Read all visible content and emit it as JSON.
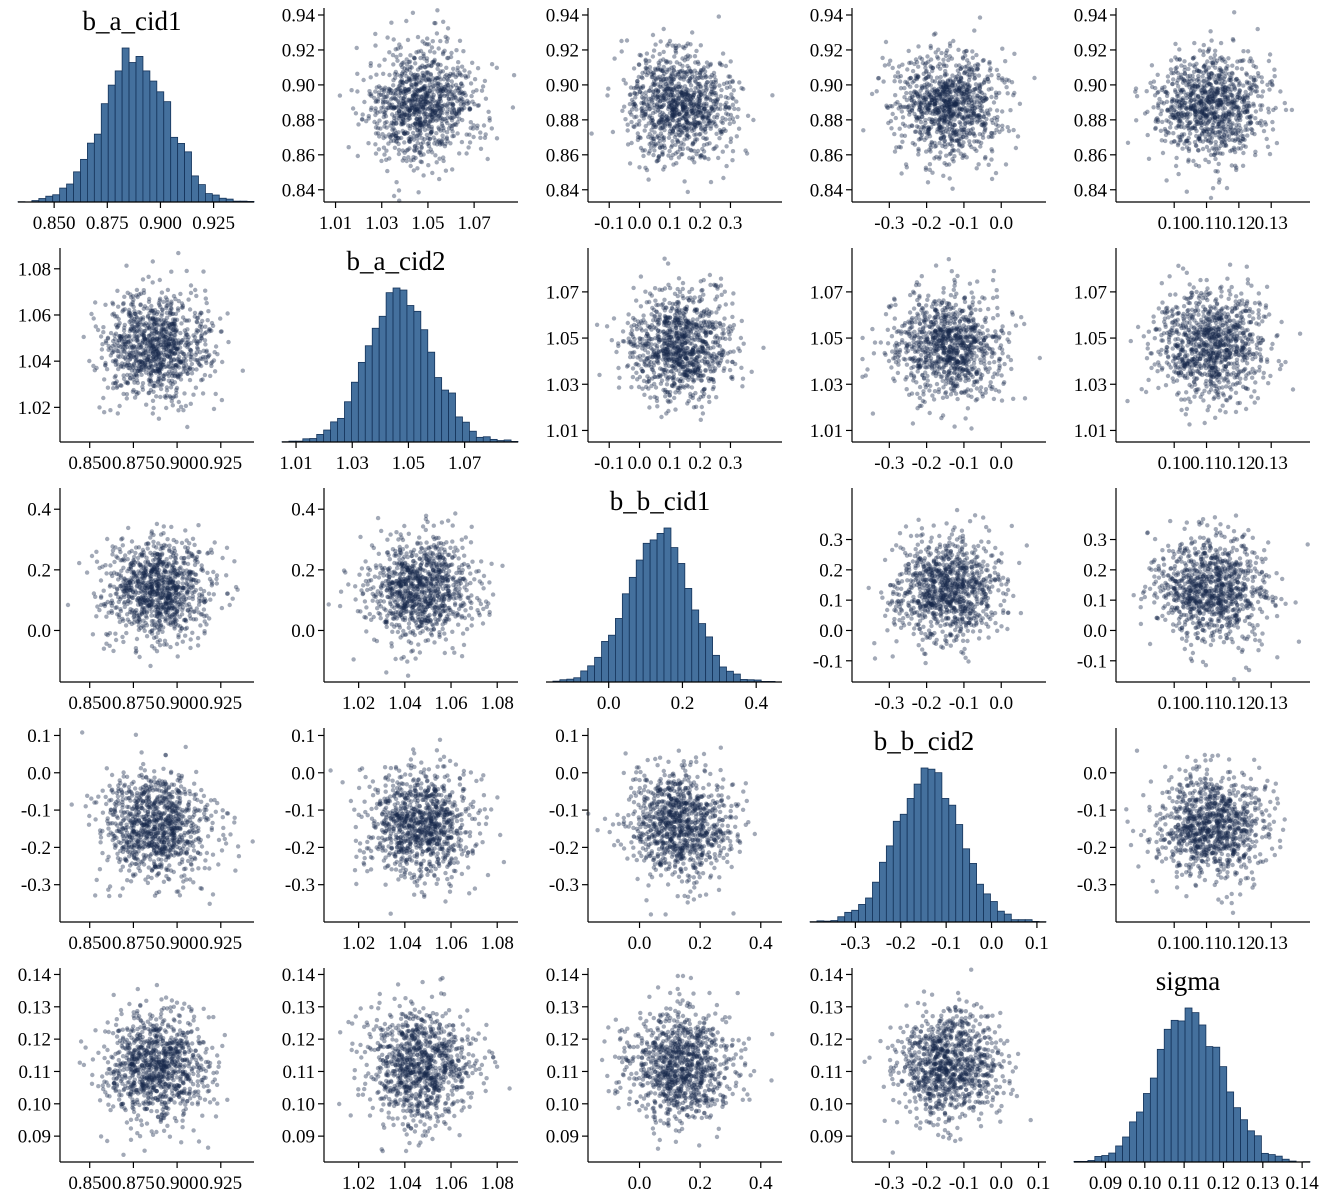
{
  "chart_data": {
    "type": "scatter",
    "subtype": "pairs-matrix",
    "description": "5x5 pairs plot of MCMC posterior samples: histograms of each parameter on the diagonal, pairwise scatter plots of draws off the diagonal. All pairs appear uncorrelated (round point clouds).",
    "grid": [
      5,
      5
    ],
    "diagonal_panel": "histogram",
    "off_diagonal_panel": "scatter",
    "legend": "none",
    "gridlines": false,
    "point_color": "#16294c",
    "point_opacity": 0.4,
    "hist_fill": "#44709d",
    "hist_stroke": "#14335a",
    "axis_color": "#000000",
    "n_points_per_panel": 1000,
    "n_hist_samples": 6000,
    "variables": [
      {
        "name": "b_a_cid1",
        "label": "b_a_cid1",
        "mean": 0.888,
        "sd": 0.0155,
        "range": [
          0.833,
          0.944
        ],
        "ticks_diag": [
          "0.850",
          "0.875",
          "0.900",
          "0.925"
        ],
        "ticks_lower": [
          "0.850",
          "0.875",
          "0.900",
          "0.925"
        ],
        "ticks_upper": [
          "0.84",
          "0.86",
          "0.88",
          "0.90",
          "0.92",
          "0.94"
        ]
      },
      {
        "name": "b_a_cid2",
        "label": "b_a_cid2",
        "mean": 1.047,
        "sd": 0.0115,
        "range": [
          1.005,
          1.089
        ],
        "ticks_diag": [
          "1.01",
          "1.03",
          "1.05",
          "1.07"
        ],
        "ticks_lower": [
          "1.02",
          "1.04",
          "1.06",
          "1.08"
        ],
        "ticks_upper": [
          "1.01",
          "1.03",
          "1.05",
          "1.07"
        ]
      },
      {
        "name": "b_b_cid1",
        "label": "b_b_cid1",
        "mean": 0.135,
        "sd": 0.085,
        "range": [
          -0.17,
          0.47
        ],
        "ticks_diag": [
          "0.0",
          "0.2",
          "0.4"
        ],
        "ticks_lower": [
          "0.0",
          "0.2",
          "0.4"
        ],
        "ticks_upper": [
          "-0.1",
          "0.0",
          "0.1",
          "0.2",
          "0.3"
        ]
      },
      {
        "name": "b_b_cid2",
        "label": "b_b_cid2",
        "mean": -0.14,
        "sd": 0.072,
        "range": [
          -0.4,
          0.12
        ],
        "ticks_diag": [
          "-0.3",
          "-0.2",
          "-0.1",
          "0.0",
          "0.1"
        ],
        "ticks_lower": [
          "-0.3",
          "-0.2",
          "-0.1",
          "0.0",
          "0.1"
        ],
        "ticks_upper": [
          "-0.3",
          "-0.2",
          "-0.1",
          "0.0"
        ]
      },
      {
        "name": "sigma",
        "label": "sigma",
        "mean": 0.1115,
        "sd": 0.0085,
        "range": [
          0.082,
          0.142
        ],
        "ticks_diag": [
          "0.09",
          "0.10",
          "0.11",
          "0.12",
          "0.13",
          "0.14"
        ],
        "ticks_lower": [
          "0.09",
          "0.10",
          "0.11",
          "0.12",
          "0.13",
          "0.14"
        ],
        "ticks_upper": [
          "0.10",
          "0.11",
          "0.12",
          "0.13"
        ]
      }
    ]
  }
}
